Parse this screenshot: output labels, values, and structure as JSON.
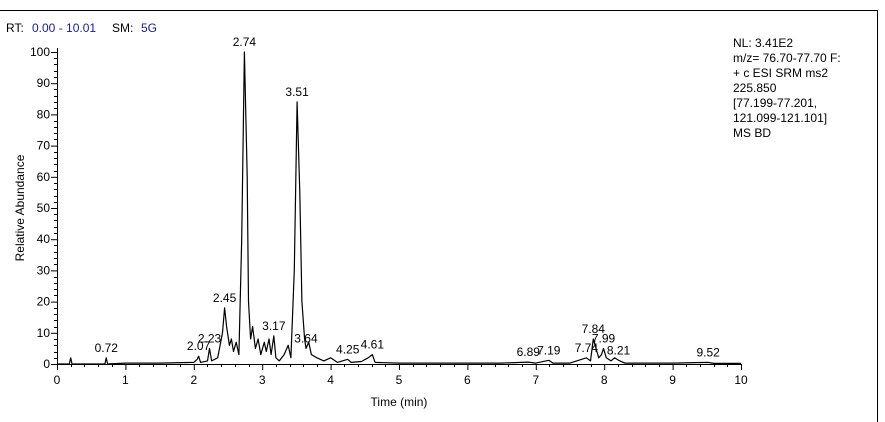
{
  "chart_data": {
    "type": "line",
    "header": {
      "rt_label": "RT:",
      "rt_range": "0.00 - 10.01",
      "sm_label": "SM:",
      "sm_value": "5G"
    },
    "info": [
      "NL: 3.41E2",
      "m/z= 76.70-77.70 F:",
      "+ c ESI SRM ms2",
      "225.850",
      "[77.199-77.201,",
      "121.099-121.101]",
      "MS BD"
    ],
    "x_label": "Time (min)",
    "y_label": "Relative Abundance",
    "xlim": [
      0,
      10
    ],
    "ylim": [
      0,
      100
    ],
    "xticks": [
      0,
      1,
      2,
      3,
      4,
      5,
      6,
      7,
      8,
      9,
      10
    ],
    "yticks": [
      0,
      10,
      20,
      30,
      40,
      50,
      60,
      70,
      80,
      90,
      100
    ],
    "color": "#000000",
    "x": [
      0,
      0.18,
      0.2,
      0.22,
      0.7,
      0.72,
      0.74,
      1.0,
      1.5,
      2.0,
      2.05,
      2.07,
      2.1,
      2.2,
      2.23,
      2.26,
      2.35,
      2.42,
      2.45,
      2.48,
      2.52,
      2.55,
      2.58,
      2.62,
      2.66,
      2.7,
      2.74,
      2.78,
      2.8,
      2.83,
      2.86,
      2.9,
      2.94,
      2.98,
      3.03,
      3.06,
      3.1,
      3.13,
      3.17,
      3.2,
      3.25,
      3.32,
      3.38,
      3.42,
      3.47,
      3.51,
      3.55,
      3.58,
      3.62,
      3.64,
      3.68,
      3.72,
      3.8,
      3.9,
      4.0,
      4.1,
      4.25,
      4.3,
      4.45,
      4.55,
      4.61,
      4.65,
      5.0,
      5.5,
      6.0,
      6.5,
      6.89,
      7.0,
      7.19,
      7.25,
      7.5,
      7.74,
      7.8,
      7.84,
      7.88,
      7.92,
      7.96,
      7.99,
      8.03,
      8.1,
      8.15,
      8.21,
      8.3,
      9.0,
      9.52,
      9.6,
      10.0
    ],
    "values": [
      0,
      0,
      2,
      0,
      0,
      2,
      0,
      0.3,
      0.3,
      0.5,
      1.5,
      2.5,
      0.5,
      1,
      5,
      1,
      2,
      10,
      18,
      12,
      6,
      8,
      4,
      7,
      3,
      40,
      100,
      60,
      20,
      8,
      12,
      5,
      8,
      3,
      7,
      4,
      8,
      3,
      9,
      2,
      1,
      3,
      6,
      2,
      30,
      84,
      55,
      20,
      8,
      5,
      7,
      3,
      2,
      1,
      2,
      0.5,
      1.5,
      0.5,
      0.8,
      2,
      3,
      0.5,
      0.3,
      0.3,
      0.3,
      0.3,
      0.6,
      0.3,
      1.2,
      0.3,
      0.3,
      2,
      1,
      8,
      5,
      2,
      3,
      5,
      2,
      1,
      2,
      1.2,
      0.3,
      0.3,
      0.5,
      0.2,
      0.2
    ],
    "peaks": [
      {
        "x": 0.72,
        "y": 2
      },
      {
        "x": 2.07,
        "y": 2.5
      },
      {
        "x": 2.23,
        "y": 5
      },
      {
        "x": 2.45,
        "y": 18
      },
      {
        "x": 2.74,
        "y": 100
      },
      {
        "x": 3.17,
        "y": 9
      },
      {
        "x": 3.51,
        "y": 84
      },
      {
        "x": 3.64,
        "y": 5
      },
      {
        "x": 4.25,
        "y": 1.5
      },
      {
        "x": 4.61,
        "y": 3
      },
      {
        "x": 6.89,
        "y": 0.6
      },
      {
        "x": 7.19,
        "y": 1.2
      },
      {
        "x": 7.74,
        "y": 2
      },
      {
        "x": 7.84,
        "y": 8
      },
      {
        "x": 7.99,
        "y": 5
      },
      {
        "x": 8.21,
        "y": 1.2
      },
      {
        "x": 9.52,
        "y": 0.5
      }
    ]
  }
}
